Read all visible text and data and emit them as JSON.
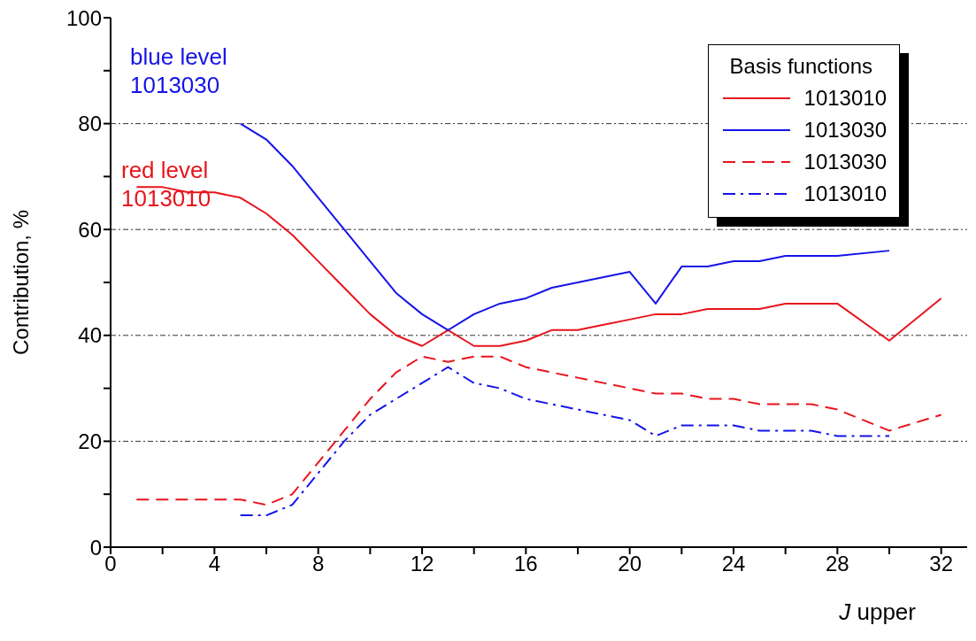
{
  "chart_data": {
    "type": "line",
    "xlabel": "J upper",
    "ylabel": "Contribution, %",
    "legend_title": "Basis functions",
    "legend": "top right",
    "grid": "y",
    "xlim": [
      0,
      33
    ],
    "xticks": [
      0,
      {
        "value": 2,
        "label": null
      },
      4,
      {
        "value": 6,
        "label": null
      },
      8,
      {
        "value": 10,
        "label": null
      },
      12,
      {
        "value": 14,
        "label": null
      },
      16,
      {
        "value": 18,
        "label": null
      },
      20,
      {
        "value": 22,
        "label": null
      },
      24,
      {
        "value": 26,
        "label": null
      },
      28,
      {
        "value": 30,
        "label": null
      },
      32
    ],
    "ylim": [
      0,
      100
    ],
    "yticks": [
      0,
      {
        "value": 10,
        "label": null
      },
      20,
      {
        "value": 30,
        "label": null
      },
      40,
      {
        "value": 50,
        "label": null
      },
      60,
      {
        "value": 70,
        "label": null
      },
      80,
      {
        "value": 90,
        "label": null
      },
      100
    ],
    "series": [
      {
        "name": "1013010",
        "color": "#e8141c",
        "line_style": "solid",
        "x": [
          1,
          2,
          3,
          4,
          5,
          6,
          7,
          8,
          9,
          10,
          11,
          12,
          13,
          14,
          15,
          16,
          17,
          18,
          19,
          20,
          21,
          22,
          23,
          24,
          25,
          26,
          27,
          28,
          30,
          32
        ],
        "values": [
          68,
          68,
          67,
          67,
          66,
          63,
          59,
          54,
          49,
          44,
          40,
          38,
          41,
          38,
          38,
          39,
          41,
          41,
          42,
          43,
          44,
          44,
          45,
          45,
          45,
          46,
          46,
          46,
          39,
          47
        ]
      },
      {
        "name": "1013030",
        "color": "#1414e8",
        "line_style": "solid",
        "x": [
          5,
          6,
          7,
          8,
          9,
          10,
          11,
          12,
          13,
          14,
          15,
          16,
          17,
          18,
          19,
          20,
          21,
          22,
          23,
          24,
          25,
          26,
          27,
          28,
          30
        ],
        "values": [
          80,
          77,
          72,
          66,
          60,
          54,
          48,
          44,
          41,
          44,
          46,
          47,
          49,
          50,
          51,
          52,
          46,
          53,
          53,
          54,
          54,
          55,
          55,
          55,
          56
        ]
      },
      {
        "name": "1013030",
        "color": "#e8141c",
        "line_style": "dashed",
        "x": [
          1,
          2,
          3,
          4,
          5,
          6,
          7,
          8,
          9,
          10,
          11,
          12,
          13,
          14,
          15,
          16,
          17,
          18,
          19,
          20,
          21,
          22,
          23,
          24,
          25,
          26,
          27,
          28,
          30,
          32
        ],
        "values": [
          9,
          9,
          9,
          9,
          9,
          8,
          10,
          16,
          22,
          28,
          33,
          36,
          35,
          36,
          36,
          34,
          33,
          32,
          31,
          30,
          29,
          29,
          28,
          28,
          27,
          27,
          27,
          26,
          22,
          25
        ]
      },
      {
        "name": "1013010",
        "color": "#1414e8",
        "line_style": "dashdot",
        "x": [
          5,
          6,
          7,
          8,
          9,
          10,
          11,
          12,
          13,
          14,
          15,
          16,
          17,
          18,
          19,
          20,
          21,
          22,
          23,
          24,
          25,
          26,
          27,
          28,
          29,
          30
        ],
        "values": [
          6,
          6,
          8,
          14,
          20,
          25,
          28,
          31,
          34,
          31,
          30,
          28,
          27,
          26,
          25,
          24,
          21,
          23,
          23,
          23,
          22,
          22,
          22,
          21,
          21,
          21
        ]
      }
    ],
    "annotations": [
      "blue level\n1013030",
      "red level\n1013010"
    ]
  }
}
